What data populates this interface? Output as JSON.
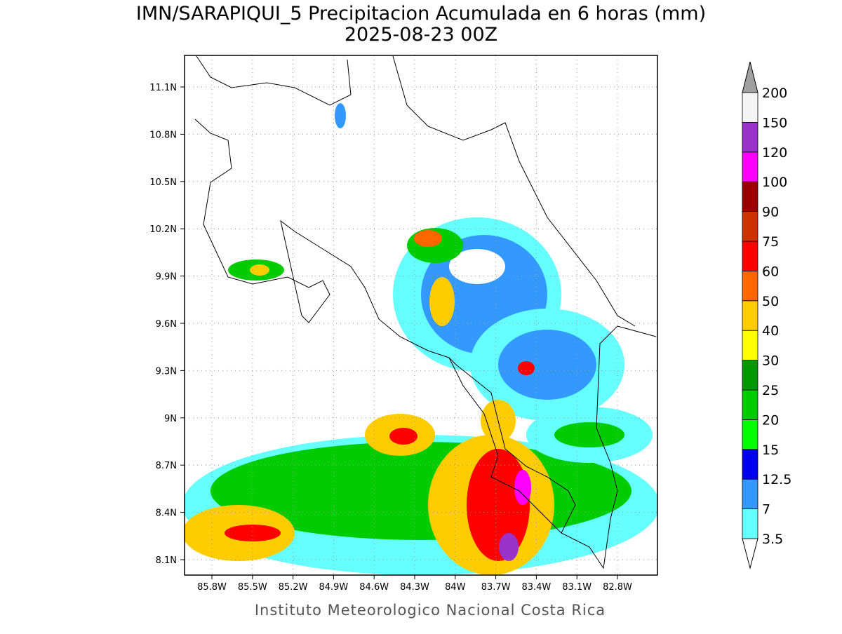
{
  "title": [
    "IMN/SARAPIQUI_5 Precipitacion Acumulada en 6 horas (mm)",
    "2025-08-23 00Z"
  ],
  "map": {
    "lon_labels": [
      "85.8W",
      "85.5W",
      "85.2W",
      "84.9W",
      "84.6W",
      "84.3W",
      "84W",
      "83.7W",
      "83.4W",
      "83.1W",
      "82.8W"
    ],
    "lat_labels": [
      "11.1N",
      "10.8N",
      "10.5N",
      "10.2N",
      "9.9N",
      "9.6N",
      "9.3N",
      "9N",
      "8.7N",
      "8.4N",
      "8.1N"
    ]
  },
  "colorbar": {
    "labels": [
      "3.5",
      "7",
      "12.5",
      "15",
      "20",
      "25",
      "30",
      "40",
      "50",
      "60",
      "75",
      "90",
      "100",
      "120",
      "150",
      "200"
    ],
    "colors": [
      "#66ffff",
      "#3399ff",
      "#0000ee",
      "#00ff00",
      "#00cc00",
      "#009900",
      "#ffff00",
      "#ffcc00",
      "#ff6600",
      "#ff0000",
      "#cc3300",
      "#990000",
      "#ff00ff",
      "#9933cc",
      "#f4f4f4"
    ],
    "below_color": "#ffffff",
    "above_color": "#a0a0a0"
  },
  "footer": "Instituto Meteorologico Nacional Costa Rica"
}
